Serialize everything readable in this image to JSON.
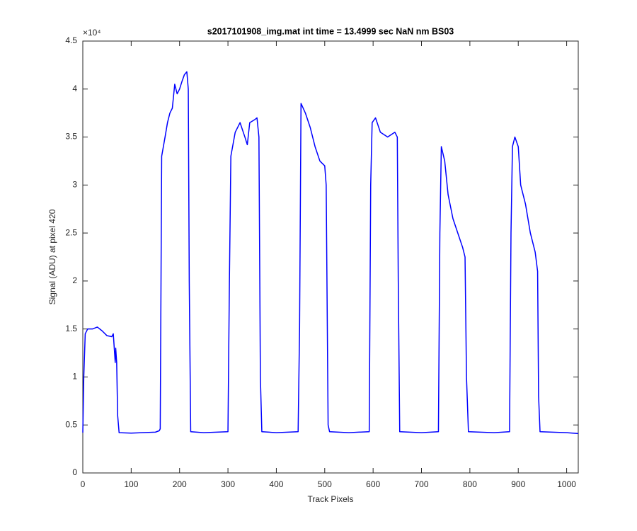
{
  "chart_data": {
    "type": "line",
    "title": "s2017101908_img.mat int time = 13.4999 sec  NaN nm BS03",
    "x_label": "Track Pixels",
    "y_label": "Signal (ADU) at pixel 420",
    "y_exponent_label": "×10⁴",
    "x": [
      0,
      2,
      5,
      10,
      20,
      30,
      40,
      50,
      60,
      63,
      65,
      67,
      68,
      70,
      72,
      75,
      100,
      150,
      158,
      160,
      163,
      170,
      175,
      180,
      185,
      190,
      195,
      200,
      205,
      210,
      215,
      218,
      220,
      223,
      250,
      300,
      303,
      306,
      315,
      325,
      335,
      340,
      345,
      355,
      360,
      364,
      367,
      370,
      400,
      445,
      448,
      451,
      460,
      470,
      480,
      490,
      500,
      503,
      507,
      510,
      550,
      592,
      595,
      598,
      605,
      615,
      630,
      645,
      650,
      652,
      655,
      700,
      735,
      738,
      741,
      748,
      755,
      765,
      775,
      785,
      790,
      793,
      797,
      850,
      882,
      885,
      888,
      893,
      900,
      905,
      915,
      925,
      935,
      940,
      942,
      945,
      1000,
      1024
    ],
    "series": [
      {
        "name": "Signal",
        "color": "#0000ff",
        "values": [
          4200,
          10000,
          14500,
          15000,
          15000,
          15200,
          14800,
          14300,
          14200,
          14500,
          13000,
          11500,
          13000,
          11500,
          6000,
          4200,
          4150,
          4250,
          4400,
          4600,
          33000,
          35000,
          36500,
          37500,
          38000,
          40500,
          39500,
          40000,
          40800,
          41500,
          41800,
          40000,
          20000,
          4300,
          4200,
          4300,
          20000,
          33000,
          35500,
          36500,
          35000,
          34200,
          36500,
          36800,
          37000,
          35000,
          10000,
          4300,
          4200,
          4300,
          15000,
          38500,
          37500,
          36000,
          34000,
          32500,
          32000,
          30000,
          5000,
          4300,
          4200,
          4300,
          30000,
          36500,
          37000,
          35500,
          35000,
          35500,
          35000,
          20000,
          4300,
          4200,
          4300,
          25000,
          34000,
          32500,
          29000,
          26500,
          25000,
          23500,
          22500,
          10000,
          4300,
          4200,
          4300,
          25000,
          34000,
          35000,
          34000,
          30000,
          28000,
          25000,
          23000,
          21000,
          8000,
          4300,
          4200,
          4100
        ]
      }
    ],
    "xlim": [
      0,
      1024
    ],
    "ylim": [
      0,
      45000
    ],
    "xticks": [
      0,
      100,
      200,
      300,
      400,
      500,
      600,
      700,
      800,
      900,
      1000
    ],
    "yticks": [
      0,
      {
        "value": 5000,
        "label": "0.5"
      },
      {
        "value": 10000,
        "label": "1"
      },
      {
        "value": 15000,
        "label": "1.5"
      },
      {
        "value": 20000,
        "label": "2"
      },
      {
        "value": 25000,
        "label": "2.5"
      },
      {
        "value": 30000,
        "label": "3"
      },
      {
        "value": 35000,
        "label": "3.5"
      },
      {
        "value": 40000,
        "label": "4"
      },
      {
        "value": 45000,
        "label": "4.5"
      }
    ],
    "grid": false
  }
}
